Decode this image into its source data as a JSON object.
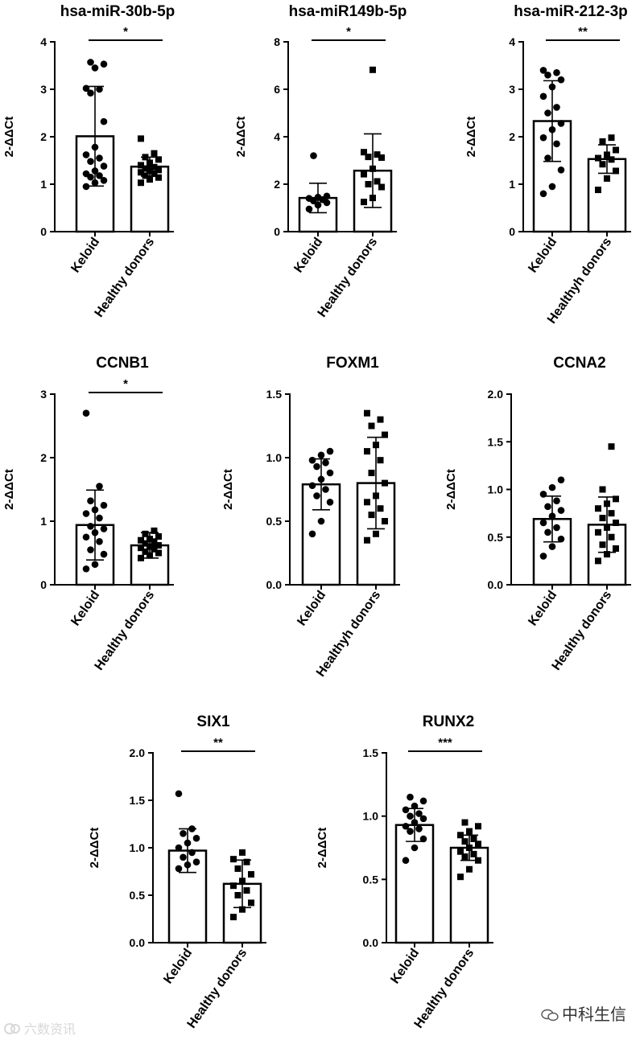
{
  "colors": {
    "ink": "#000000",
    "background": "#ffffff"
  },
  "watermarks": {
    "left": "六数资讯",
    "right": "中科生信"
  },
  "chart_data": [
    {
      "type": "bar",
      "title": "hsa-miR-30b-5p",
      "ylabel": "2-ΔΔCt",
      "categories": [
        "Keloid",
        "Healthy donors"
      ],
      "ylim": [
        0,
        4
      ],
      "yticks": [
        "0",
        "1",
        "2",
        "3",
        "4"
      ],
      "means": [
        2.01,
        1.37
      ],
      "sd": [
        1.05,
        0.2
      ],
      "significance": "*",
      "points": [
        [
          0.95,
          1.03,
          1.08,
          1.15,
          1.18,
          1.22,
          1.28,
          1.38,
          1.48,
          1.55,
          1.62,
          1.78,
          2.32,
          2.92,
          3.0,
          3.02,
          3.45,
          3.53,
          3.57
        ],
        [
          1.03,
          1.1,
          1.14,
          1.18,
          1.22,
          1.25,
          1.28,
          1.3,
          1.33,
          1.36,
          1.4,
          1.45,
          1.52,
          1.57,
          1.65,
          1.96
        ]
      ]
    },
    {
      "type": "bar",
      "title": "hsa-miR149b-5p",
      "ylabel": "2-ΔΔCt",
      "categories": [
        "Keloid",
        "Healthy donors"
      ],
      "ylim": [
        0,
        8
      ],
      "yticks": [
        "0",
        "2",
        "4",
        "6",
        "8"
      ],
      "means": [
        1.42,
        2.57
      ],
      "sd": [
        0.62,
        1.55
      ],
      "significance": "*",
      "points": [
        [
          0.95,
          1.12,
          1.22,
          1.3,
          1.35,
          1.4,
          1.45,
          1.5,
          3.2
        ],
        [
          1.25,
          1.42,
          1.88,
          2.0,
          2.12,
          2.42,
          2.65,
          3.12,
          3.15,
          3.25,
          3.35,
          6.82
        ]
      ]
    },
    {
      "type": "bar",
      "title": "hsa-miR-212-3p",
      "ylabel": "2-ΔΔCt",
      "categories": [
        "Keloid",
        "Healthyh donors"
      ],
      "ylim": [
        0,
        4
      ],
      "yticks": [
        "0",
        "1",
        "2",
        "3",
        "4"
      ],
      "means": [
        2.33,
        1.53
      ],
      "sd": [
        0.85,
        0.3
      ],
      "significance": "**",
      "points": [
        [
          0.8,
          0.95,
          1.3,
          1.55,
          1.85,
          1.98,
          2.15,
          2.28,
          2.5,
          2.62,
          2.85,
          3.05,
          3.2,
          3.3,
          3.35,
          3.4
        ],
        [
          0.88,
          1.12,
          1.28,
          1.42,
          1.52,
          1.55,
          1.62,
          1.72,
          1.9,
          1.98
        ]
      ]
    },
    {
      "type": "bar",
      "title": "CCNB1",
      "ylabel": "2-ΔΔCt",
      "categories": [
        "Keloid",
        "Healthy donors"
      ],
      "ylim": [
        0,
        3
      ],
      "yticks": [
        "0",
        "1",
        "2",
        "3"
      ],
      "means": [
        0.94,
        0.62
      ],
      "sd": [
        0.55,
        0.2
      ],
      "significance": "*",
      "points": [
        [
          0.25,
          0.32,
          0.48,
          0.55,
          0.68,
          0.75,
          0.82,
          0.88,
          0.92,
          1.05,
          1.12,
          1.18,
          1.25,
          1.32,
          1.55,
          2.7
        ],
        [
          0.42,
          0.46,
          0.5,
          0.52,
          0.56,
          0.58,
          0.6,
          0.62,
          0.65,
          0.68,
          0.7,
          0.72,
          0.76,
          0.8,
          0.85
        ]
      ]
    },
    {
      "type": "bar",
      "title": "FOXM1",
      "ylabel": "2-ΔΔCt",
      "categories": [
        "Keloid",
        "Healthyh donors"
      ],
      "ylim": [
        0,
        1.5
      ],
      "yticks": [
        "0.0",
        "0.5",
        "1.0",
        "1.5"
      ],
      "means": [
        0.79,
        0.8
      ],
      "sd": [
        0.2,
        0.36
      ],
      "significance": "",
      "points": [
        [
          0.4,
          0.5,
          0.65,
          0.7,
          0.75,
          0.78,
          0.83,
          0.88,
          0.93,
          0.96,
          0.98,
          1.02,
          1.05
        ],
        [
          0.35,
          0.4,
          0.5,
          0.55,
          0.6,
          0.65,
          0.7,
          0.8,
          0.88,
          0.98,
          1.05,
          1.1,
          1.18,
          1.25,
          1.3,
          1.35
        ]
      ]
    },
    {
      "type": "bar",
      "title": "CCNA2",
      "ylabel": "2-ΔΔCt",
      "categories": [
        "Keloid",
        "Healthy donors"
      ],
      "ylim": [
        0,
        2.0
      ],
      "yticks": [
        "0.0",
        "0.5",
        "1.0",
        "1.5",
        "2.0"
      ],
      "means": [
        0.69,
        0.63
      ],
      "sd": [
        0.24,
        0.29
      ],
      "significance": "",
      "points": [
        [
          0.3,
          0.4,
          0.48,
          0.55,
          0.6,
          0.65,
          0.72,
          0.78,
          0.82,
          0.88,
          0.95,
          1.02,
          1.1
        ],
        [
          0.25,
          0.32,
          0.38,
          0.42,
          0.5,
          0.55,
          0.6,
          0.65,
          0.7,
          0.75,
          0.8,
          0.85,
          0.9,
          1.0,
          1.45
        ]
      ]
    },
    {
      "type": "bar",
      "title": "SIX1",
      "ylabel": "2-ΔΔCt",
      "categories": [
        "Keloid",
        "Healthy donors"
      ],
      "ylim": [
        0,
        2.0
      ],
      "yticks": [
        "0.0",
        "0.5",
        "1.0",
        "1.5",
        "2.0"
      ],
      "means": [
        0.97,
        0.62
      ],
      "sd": [
        0.23,
        0.25
      ],
      "significance": "**",
      "points": [
        [
          0.78,
          0.82,
          0.85,
          0.9,
          0.95,
          1.0,
          1.05,
          1.1,
          1.15,
          1.2,
          1.57
        ],
        [
          0.27,
          0.35,
          0.42,
          0.5,
          0.55,
          0.6,
          0.65,
          0.72,
          0.78,
          0.85,
          0.88,
          0.95
        ]
      ]
    },
    {
      "type": "bar",
      "title": "RUNX2",
      "ylabel": "2-ΔΔCt",
      "categories": [
        "Keloid",
        "Healthy donors"
      ],
      "ylim": [
        0,
        1.5
      ],
      "yticks": [
        "0.0",
        "0.5",
        "1.0",
        "1.5"
      ],
      "means": [
        0.93,
        0.75
      ],
      "sd": [
        0.13,
        0.1
      ],
      "significance": "***",
      "points": [
        [
          0.65,
          0.75,
          0.82,
          0.88,
          0.9,
          0.92,
          0.95,
          0.98,
          1.0,
          1.02,
          1.05,
          1.08,
          1.12,
          1.15
        ],
        [
          0.52,
          0.58,
          0.65,
          0.68,
          0.7,
          0.72,
          0.75,
          0.78,
          0.8,
          0.82,
          0.85,
          0.88,
          0.92,
          0.95
        ]
      ]
    }
  ]
}
